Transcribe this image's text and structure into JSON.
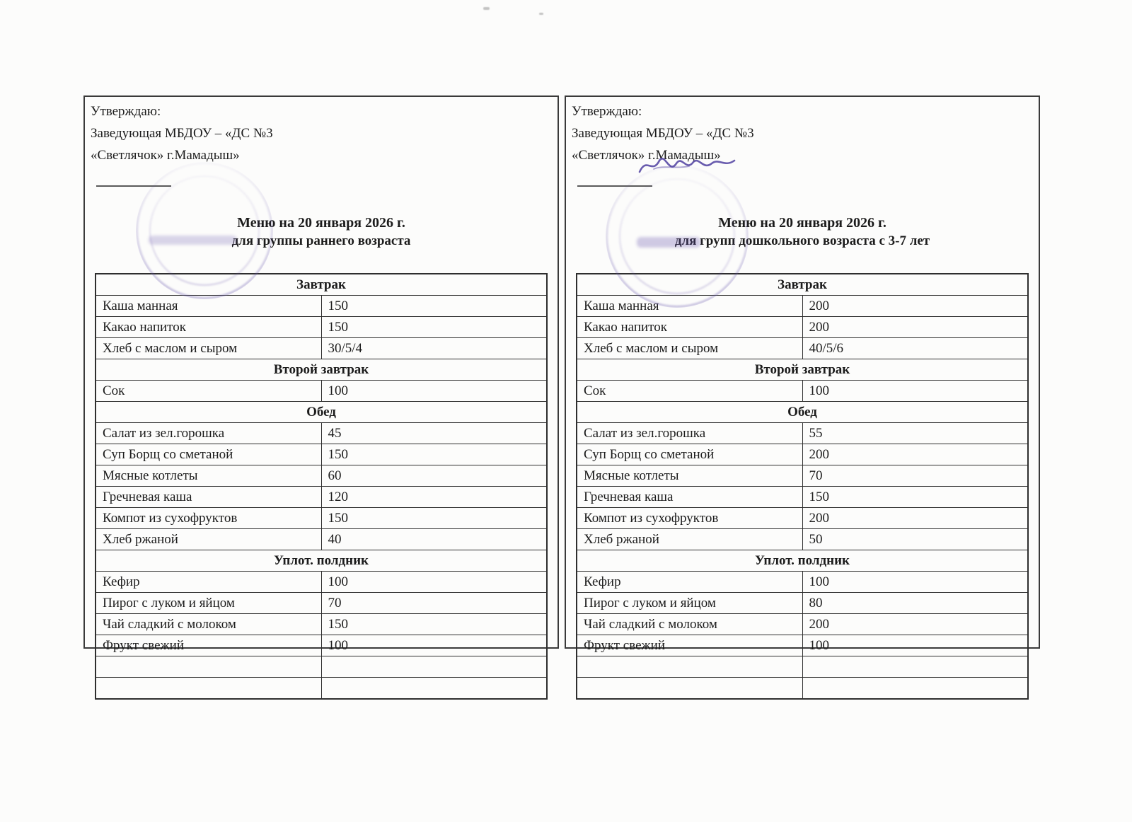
{
  "colors": {
    "ink": "#1c1c1c",
    "table_line": "#2e2e2e",
    "stamp_purple": "#6654ac"
  },
  "panels": [
    {
      "approval_lines": [
        "Утверждаю:",
        "Заведующая МБДОУ – «ДС №3",
        "«Светлячок» г.Мамадыш»"
      ],
      "title": "Меню на 20 января 2026 г.",
      "subtitle": "для группы раннего возраста",
      "sections": [
        {
          "header": "Завтрак",
          "rows": [
            [
              "Каша манная",
              "150"
            ],
            [
              "Какао напиток",
              "150"
            ],
            [
              "Хлеб с маслом и сыром",
              "30/5/4"
            ]
          ]
        },
        {
          "header": "Второй завтрак",
          "rows": [
            [
              "Сок",
              "100"
            ]
          ]
        },
        {
          "header": "Обед",
          "rows": [
            [
              "Салат из зел.горошка",
              "45"
            ],
            [
              "Суп Борщ со сметаной",
              "150"
            ],
            [
              "Мясные котлеты",
              "60"
            ],
            [
              "Гречневая каша",
              "120"
            ],
            [
              "Компот из сухофруктов",
              "150"
            ],
            [
              "Хлеб ржаной",
              "40"
            ]
          ]
        },
        {
          "header": "Уплот. полдник",
          "rows": [
            [
              "Кефир",
              "100"
            ],
            [
              "Пирог с луком и яйцом",
              "70"
            ],
            [
              "Чай сладкий с молоком",
              "150"
            ],
            [
              "Фрукт свежий",
              "100"
            ]
          ]
        }
      ],
      "empty_rows": 2
    },
    {
      "approval_lines": [
        "Утверждаю:",
        "Заведующая МБДОУ – «ДС №3",
        "«Светлячок» г.Мамадыш»"
      ],
      "title": "Меню на 20 января 2026 г.",
      "subtitle": "для групп дошкольного возраста с 3-7 лет",
      "sections": [
        {
          "header": "Завтрак",
          "rows": [
            [
              "Каша манная",
              "200"
            ],
            [
              "Какао напиток",
              "200"
            ],
            [
              "Хлеб с маслом и сыром",
              "40/5/6"
            ]
          ]
        },
        {
          "header": "Второй завтрак",
          "rows": [
            [
              "Сок",
              "100"
            ]
          ]
        },
        {
          "header": "Обед",
          "rows": [
            [
              "Салат из зел.горошка",
              "55"
            ],
            [
              "Суп Борщ со сметаной",
              "200"
            ],
            [
              "Мясные котлеты",
              "70"
            ],
            [
              "Гречневая каша",
              "150"
            ],
            [
              "Компот из сухофруктов",
              "200"
            ],
            [
              "Хлеб ржаной",
              "50"
            ]
          ]
        },
        {
          "header": "Уплот. полдник",
          "rows": [
            [
              "Кефир",
              "100"
            ],
            [
              "Пирог с луком и яйцом",
              "80"
            ],
            [
              "Чай сладкий с молоком",
              "200"
            ],
            [
              "Фрукт свежий",
              "100"
            ]
          ]
        }
      ],
      "empty_rows": 2
    }
  ]
}
